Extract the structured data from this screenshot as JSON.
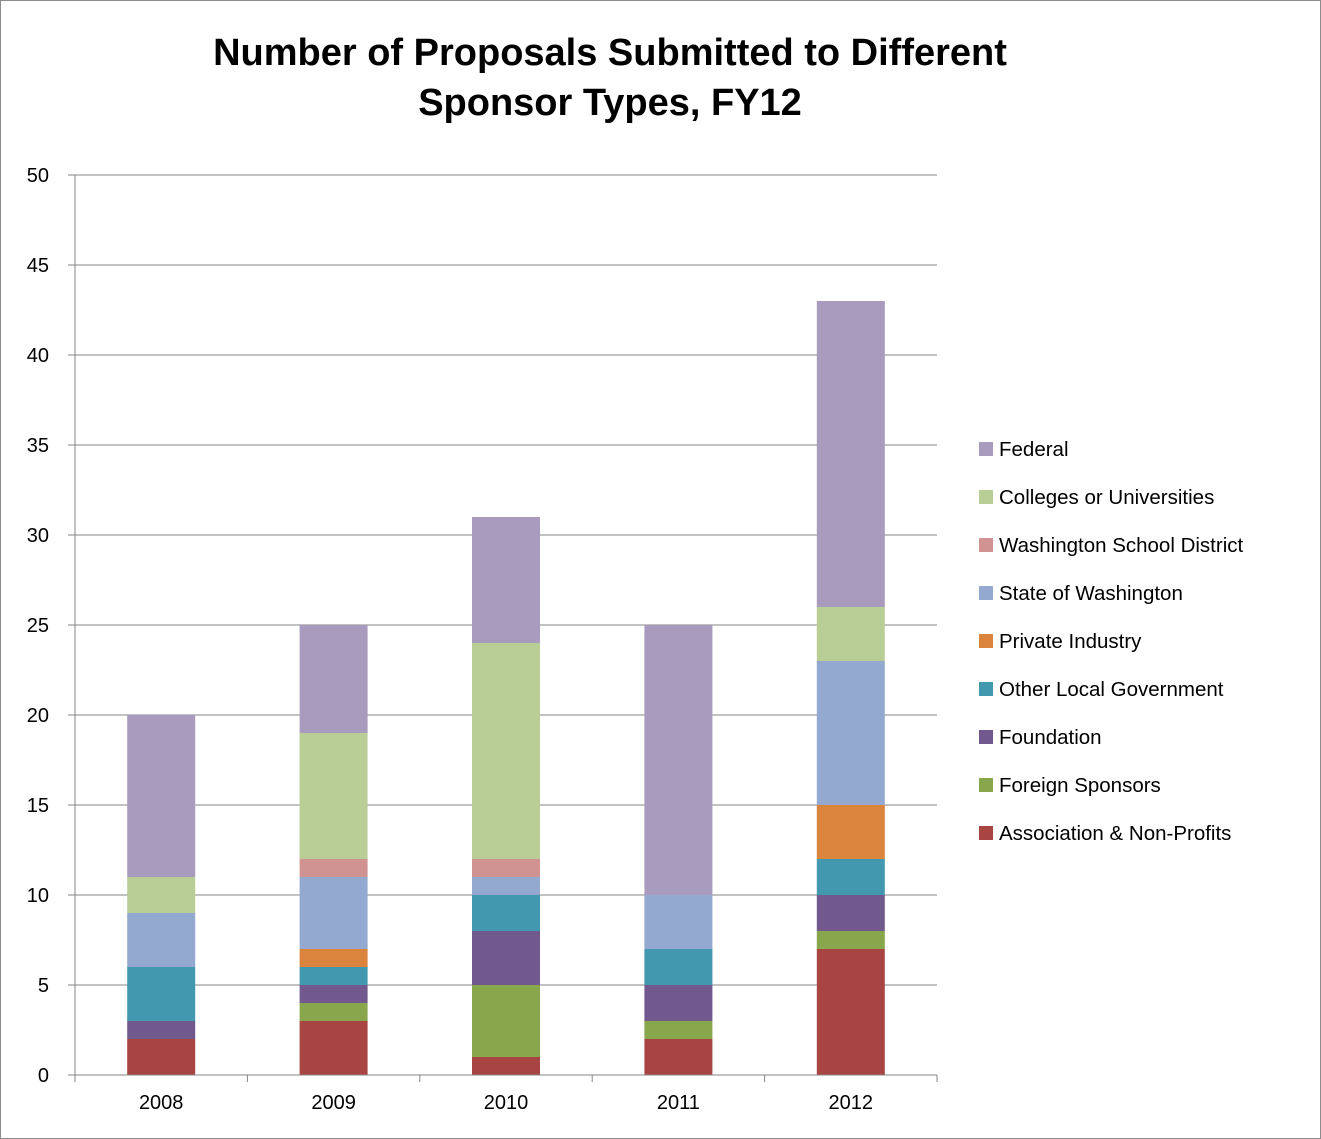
{
  "chart_data": {
    "type": "bar",
    "stacked": true,
    "title": "Number of Proposals Submitted to Different Sponsor Types, FY12",
    "title_lines": [
      "Number of Proposals Submitted to Different",
      "Sponsor Types, FY12"
    ],
    "xlabel": "",
    "ylabel": "",
    "categories": [
      "2008",
      "2009",
      "2010",
      "2011",
      "2012"
    ],
    "ylim": [
      0,
      50
    ],
    "yticks": [
      0,
      5,
      10,
      15,
      20,
      25,
      30,
      35,
      40,
      45,
      50
    ],
    "grid": true,
    "legend_position": "right",
    "series": [
      {
        "name": "Association & Non-Profits",
        "color": "#A84543",
        "values": [
          2,
          3,
          1,
          2,
          7
        ]
      },
      {
        "name": "Foreign Sponsors",
        "color": "#88A64B",
        "values": [
          0,
          1,
          4,
          1,
          1
        ]
      },
      {
        "name": "Foundation",
        "color": "#71598D",
        "values": [
          1,
          1,
          3,
          2,
          2
        ]
      },
      {
        "name": "Other Local Government",
        "color": "#4198AF",
        "values": [
          3,
          1,
          2,
          2,
          2
        ]
      },
      {
        "name": "Private Industry",
        "color": "#DB843D",
        "values": [
          0,
          1,
          0,
          0,
          3
        ]
      },
      {
        "name": "State of Washington",
        "color": "#93A9CF",
        "values": [
          3,
          4,
          1,
          3,
          8
        ]
      },
      {
        "name": "Washington School District",
        "color": "#D19392",
        "values": [
          0,
          1,
          1,
          0,
          0
        ]
      },
      {
        "name": "Colleges or Universities",
        "color": "#B9CD96",
        "values": [
          2,
          7,
          12,
          0,
          3
        ]
      },
      {
        "name": "Federal",
        "color": "#A99BBD",
        "values": [
          9,
          6,
          7,
          15,
          17
        ]
      }
    ]
  }
}
